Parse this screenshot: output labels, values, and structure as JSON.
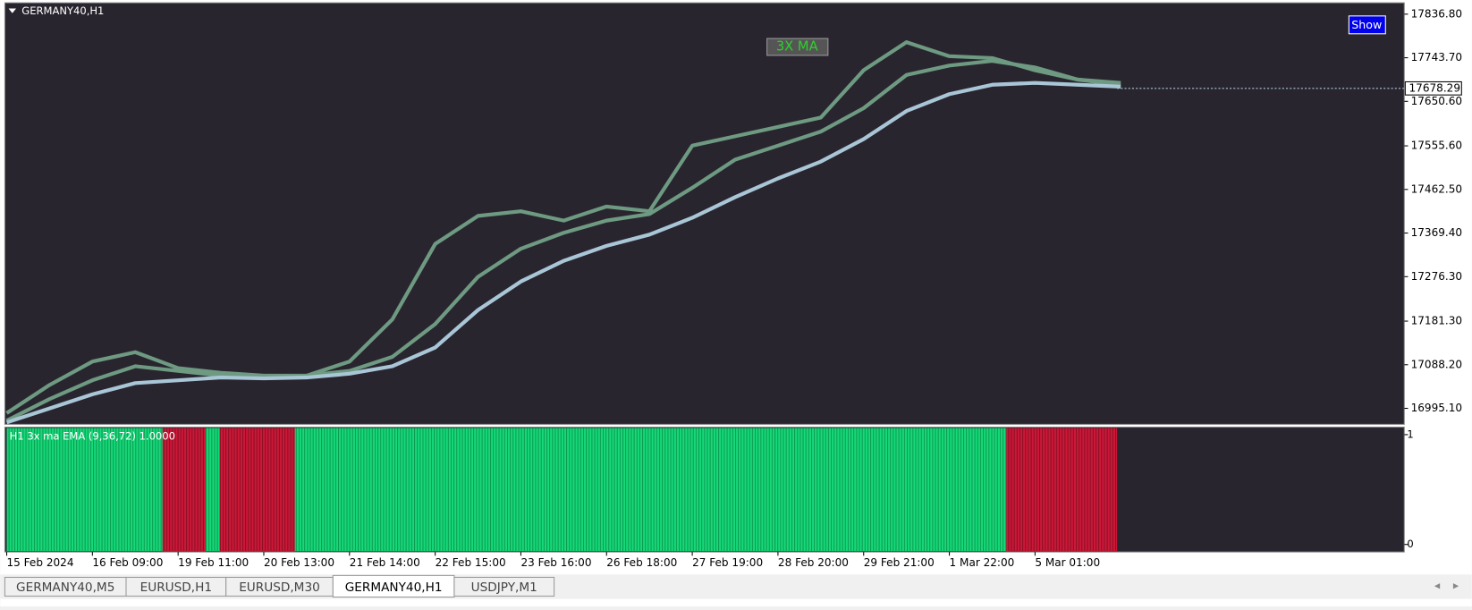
{
  "window": {
    "symbol_title": "GERMANY40,H1",
    "badge": "3X MA",
    "button": "Show",
    "tabs": [
      "GERMANY40,M5",
      "EURUSD,H1",
      "EURUSD,M30",
      "GERMANY40,H1",
      "USDJPY,M1"
    ],
    "active_tab": 3
  },
  "chart_data": {
    "type": "line",
    "categories": [
      "15 Feb 2024",
      null,
      "16 Feb 09:00",
      null,
      "19 Feb 11:00",
      null,
      "20 Feb 13:00",
      null,
      "21 Feb 14:00",
      null,
      "22 Feb 15:00",
      null,
      "23 Feb 16:00",
      null,
      "26 Feb 18:00",
      null,
      "27 Feb 19:00",
      null,
      "28 Feb 20:00",
      null,
      "29 Feb 21:00",
      null,
      "1 Mar 22:00",
      null,
      "5 Mar 01:00",
      null,
      null
    ],
    "series": [
      {
        "color": "#6e9a82",
        "values": [
          16985,
          17045,
          17095,
          17115,
          17081,
          17071,
          17065,
          17065,
          17095,
          17185,
          17346,
          17406,
          17416,
          17396,
          17426,
          17416,
          17556,
          17576,
          17596,
          17616,
          17717,
          17777,
          17747,
          17743,
          17717,
          17697,
          17690
        ]
      },
      {
        "color": "#6e9a82",
        "values": [
          16969,
          17015,
          17055,
          17085,
          17075,
          17065,
          17061,
          17065,
          17075,
          17105,
          17175,
          17276,
          17336,
          17370,
          17396,
          17410,
          17466,
          17526,
          17556,
          17586,
          17636,
          17707,
          17727,
          17737,
          17723,
          17697,
          17686
        ]
      },
      {
        "color": "#a9c6d6",
        "values": [
          16965,
          16995,
          17025,
          17049,
          17055,
          17061,
          17059,
          17061,
          17069,
          17085,
          17125,
          17205,
          17266,
          17310,
          17342,
          17366,
          17402,
          17446,
          17486,
          17522,
          17570,
          17630,
          17666,
          17686,
          17690,
          17686,
          17682
        ]
      }
    ],
    "last_price": 17678.29,
    "ylim": [
      16961,
      17861
    ],
    "yticks": [
      {
        "value": 17836.8,
        "label": "17836.80"
      },
      {
        "value": 17743.7,
        "label": "17743.70"
      },
      {
        "value": 17650.6,
        "label": "17650.60"
      },
      {
        "value": 17555.6,
        "label": "17555.60"
      },
      {
        "value": 17462.5,
        "label": "17462.50"
      },
      {
        "value": 17369.4,
        "label": "17369.40"
      },
      {
        "value": 17276.3,
        "label": "17276.30"
      },
      {
        "value": 17181.3,
        "label": "17181.30"
      },
      {
        "value": 17088.2,
        "label": "17088.20"
      },
      {
        "value": 16995.1,
        "label": "16995.10"
      }
    ]
  },
  "indicator": {
    "label": "H1 3x ma EMA (9,36,72) 1.0000",
    "ylim": [
      0,
      1
    ],
    "yticks": [
      1,
      0
    ]
  }
}
